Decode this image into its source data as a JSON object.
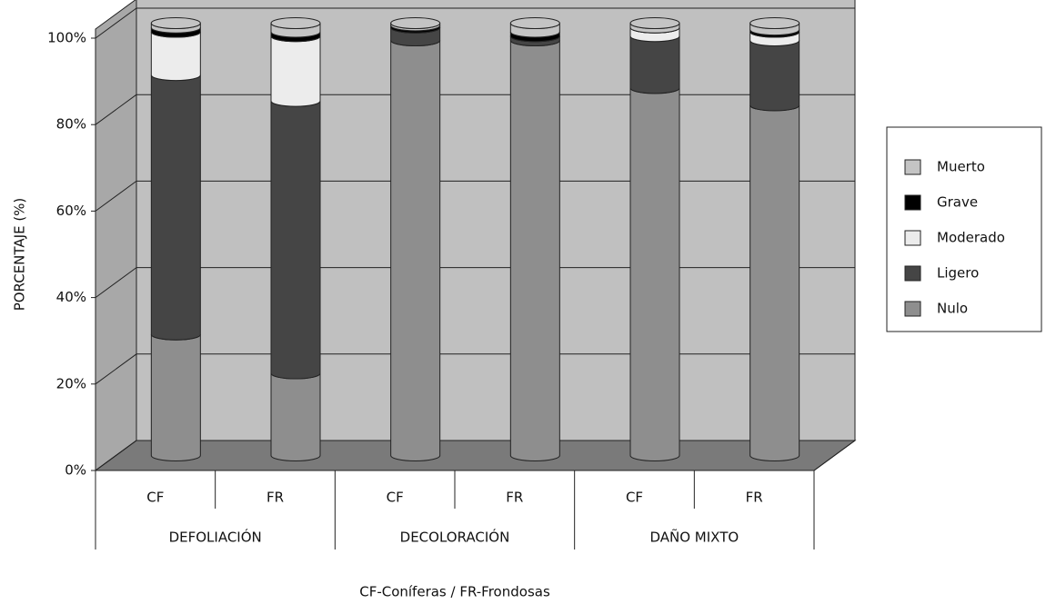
{
  "chart_data": {
    "type": "bar3d_stacked",
    "y_label": "PORCENTAJE (%)",
    "footnote": "CF-Coníferas / FR-Frondosas",
    "categories": [
      "CF",
      "FR",
      "CF",
      "FR",
      "CF",
      "FR"
    ],
    "groups": [
      "DEFOLIACIÓN",
      "DECOLORACIÓN",
      "DAÑO MIXTO"
    ],
    "series": [
      {
        "name": "Nulo",
        "color": "#8e8e8e",
        "values": [
          28,
          19,
          96,
          96,
          85,
          81
        ]
      },
      {
        "name": "Ligero",
        "color": "#454545",
        "values": [
          60,
          63,
          3,
          1,
          12,
          15
        ]
      },
      {
        "name": "Moderado",
        "color": "#ececec",
        "values": [
          10,
          15,
          0,
          0,
          2,
          2
        ]
      },
      {
        "name": "Grave",
        "color": "#000000",
        "values": [
          1,
          1,
          0.5,
          1,
          0,
          0.5
        ]
      },
      {
        "name": "Muerto",
        "color": "#c4c4c4",
        "values": [
          1,
          2,
          0.5,
          2,
          1,
          1.5
        ]
      }
    ],
    "ylim": [
      0,
      100
    ],
    "yticks": [
      {
        "value": 0,
        "label": "0%"
      },
      {
        "value": 20,
        "label": "20%"
      },
      {
        "value": 40,
        "label": "40%"
      },
      {
        "value": 60,
        "label": "60%"
      },
      {
        "value": 80,
        "label": "80%"
      },
      {
        "value": 100,
        "label": "100%"
      }
    ],
    "grid": true,
    "legend": "right"
  }
}
